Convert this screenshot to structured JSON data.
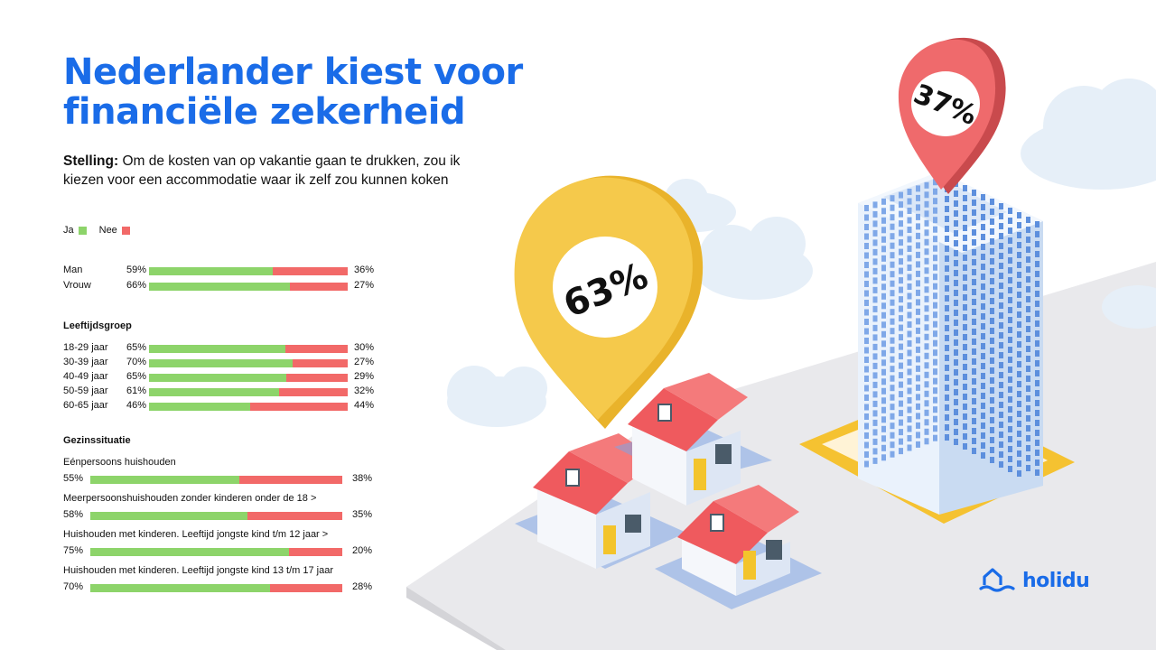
{
  "title_line1": "Nederlander kiest voor",
  "title_line2": "financiële zekerheid",
  "statement_label": "Stelling:",
  "statement_text": " Om de kosten van op vakantie gaan te drukken, zou ik kiezen voor een accommodatie waar ik zelf zou kunnen koken",
  "legend": {
    "yes": "Ja",
    "no": "Nee"
  },
  "colors": {
    "yes": "#8dd46a",
    "no": "#f26968",
    "title": "#1a6ce8",
    "pin_yellow": "#f5c94b",
    "pin_red": "#ef6a6c"
  },
  "illustration": {
    "pin_yes_value": "63%",
    "pin_no_value": "37%"
  },
  "logo_text": "holidu",
  "chart_data": {
    "type": "bar",
    "stacked": true,
    "orientation": "horizontal",
    "title": "",
    "series_labels": [
      "Ja",
      "Nee"
    ],
    "groups": [
      {
        "heading": "",
        "rows": [
          {
            "label": "Man",
            "yes": 59,
            "no": 36,
            "yes_text": "59%",
            "no_text": "36%"
          },
          {
            "label": "Vrouw",
            "yes": 66,
            "no": 27,
            "yes_text": "66%",
            "no_text": "27%"
          }
        ]
      },
      {
        "heading": "Leeftijdsgroep",
        "rows": [
          {
            "label": "18-29 jaar",
            "yes": 65,
            "no": 30,
            "yes_text": "65%",
            "no_text": "30%"
          },
          {
            "label": "30-39 jaar",
            "yes": 70,
            "no": 27,
            "yes_text": "70%",
            "no_text": "27%"
          },
          {
            "label": "40-49 jaar",
            "yes": 65,
            "no": 29,
            "yes_text": "65%",
            "no_text": "29%"
          },
          {
            "label": "50-59 jaar",
            "yes": 61,
            "no": 32,
            "yes_text": "61%",
            "no_text": "32%"
          },
          {
            "label": "60-65 jaar",
            "yes": 46,
            "no": 44,
            "yes_text": "46%",
            "no_text": "44%"
          }
        ]
      },
      {
        "heading": "Gezinssituatie",
        "rows": [
          {
            "label": "Eénpersoons huishouden",
            "yes": 55,
            "no": 38,
            "yes_text": "55%",
            "no_text": "38%"
          },
          {
            "label": "Meerpersoonshuishouden zonder kinderen onder de 18 >",
            "yes": 58,
            "no": 35,
            "yes_text": "58%",
            "no_text": "35%"
          },
          {
            "label": "Huishouden met kinderen. Leeftijd jongste kind t/m 12 jaar >",
            "yes": 75,
            "no": 20,
            "yes_text": "75%",
            "no_text": "20%"
          },
          {
            "label": "Huishouden met kinderen. Leeftijd jongste kind 13 t/m 17 jaar",
            "yes": 70,
            "no": 28,
            "yes_text": "70%",
            "no_text": "28%"
          }
        ]
      }
    ]
  }
}
